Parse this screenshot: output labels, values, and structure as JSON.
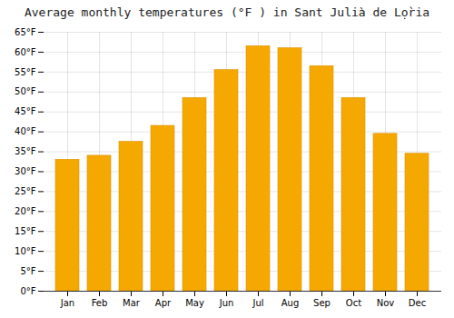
{
  "chart_data": {
    "type": "bar",
    "title": "Average monthly temperatures (°F ) in Sant Julià  de Lọ̀ria",
    "categories": [
      "Jan",
      "Feb",
      "Mar",
      "Apr",
      "May",
      "Jun",
      "Jul",
      "Aug",
      "Sep",
      "Oct",
      "Nov",
      "Dec"
    ],
    "values": [
      33,
      34,
      37.5,
      41.5,
      48.5,
      55.5,
      61.5,
      61,
      56.5,
      48.5,
      39.5,
      34.5
    ],
    "color": "#F5A800",
    "ylim": [
      0,
      65
    ],
    "yticks": [
      {
        "value": 0,
        "label": "0°F"
      },
      {
        "value": 5,
        "label": "5°F"
      },
      {
        "value": 10,
        "label": "10°F"
      },
      {
        "value": 15,
        "label": "15°F"
      },
      {
        "value": 20,
        "label": "20°F"
      },
      {
        "value": 25,
        "label": "25°F"
      },
      {
        "value": 30,
        "label": "30°F"
      },
      {
        "value": 35,
        "label": "35°F"
      },
      {
        "value": 40,
        "label": "40°F"
      },
      {
        "value": 45,
        "label": "45°F"
      },
      {
        "value": 50,
        "label": "50°F"
      },
      {
        "value": 55,
        "label": "55°F"
      },
      {
        "value": 60,
        "label": "60°F"
      },
      {
        "value": 65,
        "label": "65°F"
      }
    ],
    "grid": true
  }
}
